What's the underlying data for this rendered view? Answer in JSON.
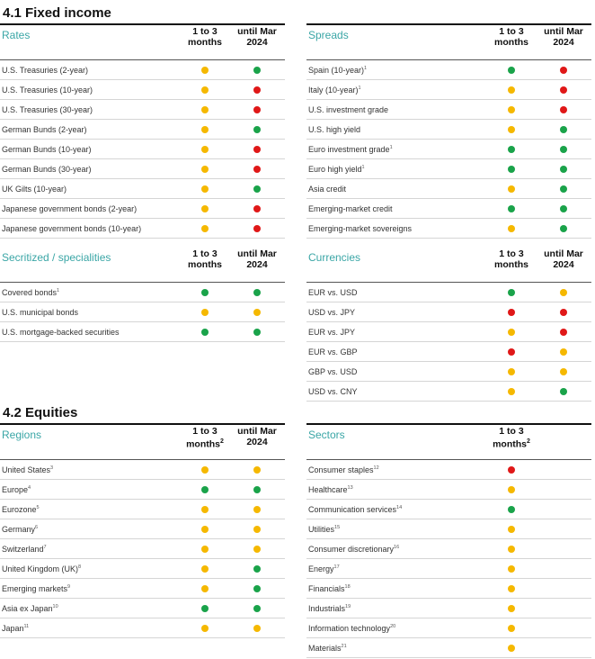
{
  "colors": {
    "green": "#1aa34a",
    "yellow": "#f5b800",
    "red": "#e01818",
    "accent": "#3aa6a6"
  },
  "fixed_income": {
    "title": "4.1 Fixed income",
    "rates": {
      "title": "Rates",
      "col1": "1 to 3 months",
      "col2": "until Mar 2024",
      "rows": [
        {
          "label": "U.S. Treasuries (2-year)",
          "note": "",
          "s1": "yellow",
          "s2": "green"
        },
        {
          "label": "U.S. Treasuries (10-year)",
          "note": "",
          "s1": "yellow",
          "s2": "red"
        },
        {
          "label": "U.S. Treasuries (30-year)",
          "note": "",
          "s1": "yellow",
          "s2": "red"
        },
        {
          "label": "German Bunds (2-year)",
          "note": "",
          "s1": "yellow",
          "s2": "green"
        },
        {
          "label": "German Bunds (10-year)",
          "note": "",
          "s1": "yellow",
          "s2": "red"
        },
        {
          "label": "German Bunds (30-year)",
          "note": "",
          "s1": "yellow",
          "s2": "red"
        },
        {
          "label": "UK Gilts (10-year)",
          "note": "",
          "s1": "yellow",
          "s2": "green"
        },
        {
          "label": "Japanese government bonds (2-year)",
          "note": "",
          "s1": "yellow",
          "s2": "red"
        },
        {
          "label": "Japanese government bonds (10-year)",
          "note": "",
          "s1": "yellow",
          "s2": "red"
        }
      ]
    },
    "spreads": {
      "title": "Spreads",
      "col1": "1 to 3 months",
      "col2": "until Mar 2024",
      "rows": [
        {
          "label": "Spain (10-year)",
          "note": "1",
          "s1": "green",
          "s2": "red"
        },
        {
          "label": "Italy (10-year)",
          "note": "1",
          "s1": "yellow",
          "s2": "red"
        },
        {
          "label": "U.S. investment grade",
          "note": "",
          "s1": "yellow",
          "s2": "red"
        },
        {
          "label": "U.S. high yield",
          "note": "",
          "s1": "yellow",
          "s2": "green"
        },
        {
          "label": "Euro investment grade",
          "note": "1",
          "s1": "green",
          "s2": "green"
        },
        {
          "label": "Euro high yield",
          "note": "1",
          "s1": "green",
          "s2": "green"
        },
        {
          "label": "Asia credit",
          "note": "",
          "s1": "yellow",
          "s2": "green"
        },
        {
          "label": "Emerging-market credit",
          "note": "",
          "s1": "green",
          "s2": "green"
        },
        {
          "label": "Emerging-market sovereigns",
          "note": "",
          "s1": "yellow",
          "s2": "green"
        }
      ]
    },
    "securitized": {
      "title": "Secritized / specialities",
      "col1": "1 to 3 months",
      "col2": "until Mar 2024",
      "rows": [
        {
          "label": "Covered bonds",
          "note": "1",
          "s1": "green",
          "s2": "green"
        },
        {
          "label": "U.S. municipal bonds",
          "note": "",
          "s1": "yellow",
          "s2": "yellow"
        },
        {
          "label": "U.S. mortgage-backed securities",
          "note": "",
          "s1": "green",
          "s2": "green"
        }
      ]
    },
    "currencies": {
      "title": "Currencies",
      "col1": "1 to 3 months",
      "col2": "until Mar 2024",
      "rows": [
        {
          "label": "EUR vs. USD",
          "note": "",
          "s1": "green",
          "s2": "yellow"
        },
        {
          "label": "USD vs. JPY",
          "note": "",
          "s1": "red",
          "s2": "red"
        },
        {
          "label": "EUR vs. JPY",
          "note": "",
          "s1": "yellow",
          "s2": "red"
        },
        {
          "label": "EUR vs. GBP",
          "note": "",
          "s1": "red",
          "s2": "yellow"
        },
        {
          "label": "GBP vs. USD",
          "note": "",
          "s1": "yellow",
          "s2": "yellow"
        },
        {
          "label": "USD vs. CNY",
          "note": "",
          "s1": "yellow",
          "s2": "green"
        }
      ]
    }
  },
  "equities": {
    "title": "4.2 Equities",
    "regions": {
      "title": "Regions",
      "col1": "1 to 3 months",
      "col1_note": "2",
      "col2": "until Mar 2024",
      "rows": [
        {
          "label": "United States",
          "note": "3",
          "s1": "yellow",
          "s2": "yellow"
        },
        {
          "label": "Europe",
          "note": "4",
          "s1": "green",
          "s2": "green"
        },
        {
          "label": "Eurozone",
          "note": "5",
          "s1": "yellow",
          "s2": "yellow"
        },
        {
          "label": "Germany",
          "note": "6",
          "s1": "yellow",
          "s2": "yellow"
        },
        {
          "label": "Switzerland",
          "note": "7",
          "s1": "yellow",
          "s2": "yellow"
        },
        {
          "label": "United Kingdom (UK)",
          "note": "8",
          "s1": "yellow",
          "s2": "green"
        },
        {
          "label": "Emerging markets",
          "note": "9",
          "s1": "yellow",
          "s2": "green"
        },
        {
          "label": "Asia ex Japan",
          "note": "10",
          "s1": "green",
          "s2": "green"
        },
        {
          "label": "Japan",
          "note": "11",
          "s1": "yellow",
          "s2": "yellow"
        }
      ]
    },
    "sectors": {
      "title": "Sectors",
      "col1": "1 to 3 months",
      "col1_note": "2",
      "rows": [
        {
          "label": "Consumer staples",
          "note": "12",
          "s1": "red"
        },
        {
          "label": "Healthcare",
          "note": "13",
          "s1": "yellow"
        },
        {
          "label": "Communication services",
          "note": "14",
          "s1": "green"
        },
        {
          "label": "Utilities",
          "note": "15",
          "s1": "yellow"
        },
        {
          "label": "Consumer discretionary",
          "note": "16",
          "s1": "yellow"
        },
        {
          "label": "Energy",
          "note": "17",
          "s1": "yellow"
        },
        {
          "label": "Financials",
          "note": "18",
          "s1": "yellow"
        },
        {
          "label": "Industrials",
          "note": "19",
          "s1": "yellow"
        },
        {
          "label": "Information technology",
          "note": "20",
          "s1": "yellow"
        },
        {
          "label": "Materials",
          "note": "21",
          "s1": "yellow"
        }
      ]
    }
  }
}
